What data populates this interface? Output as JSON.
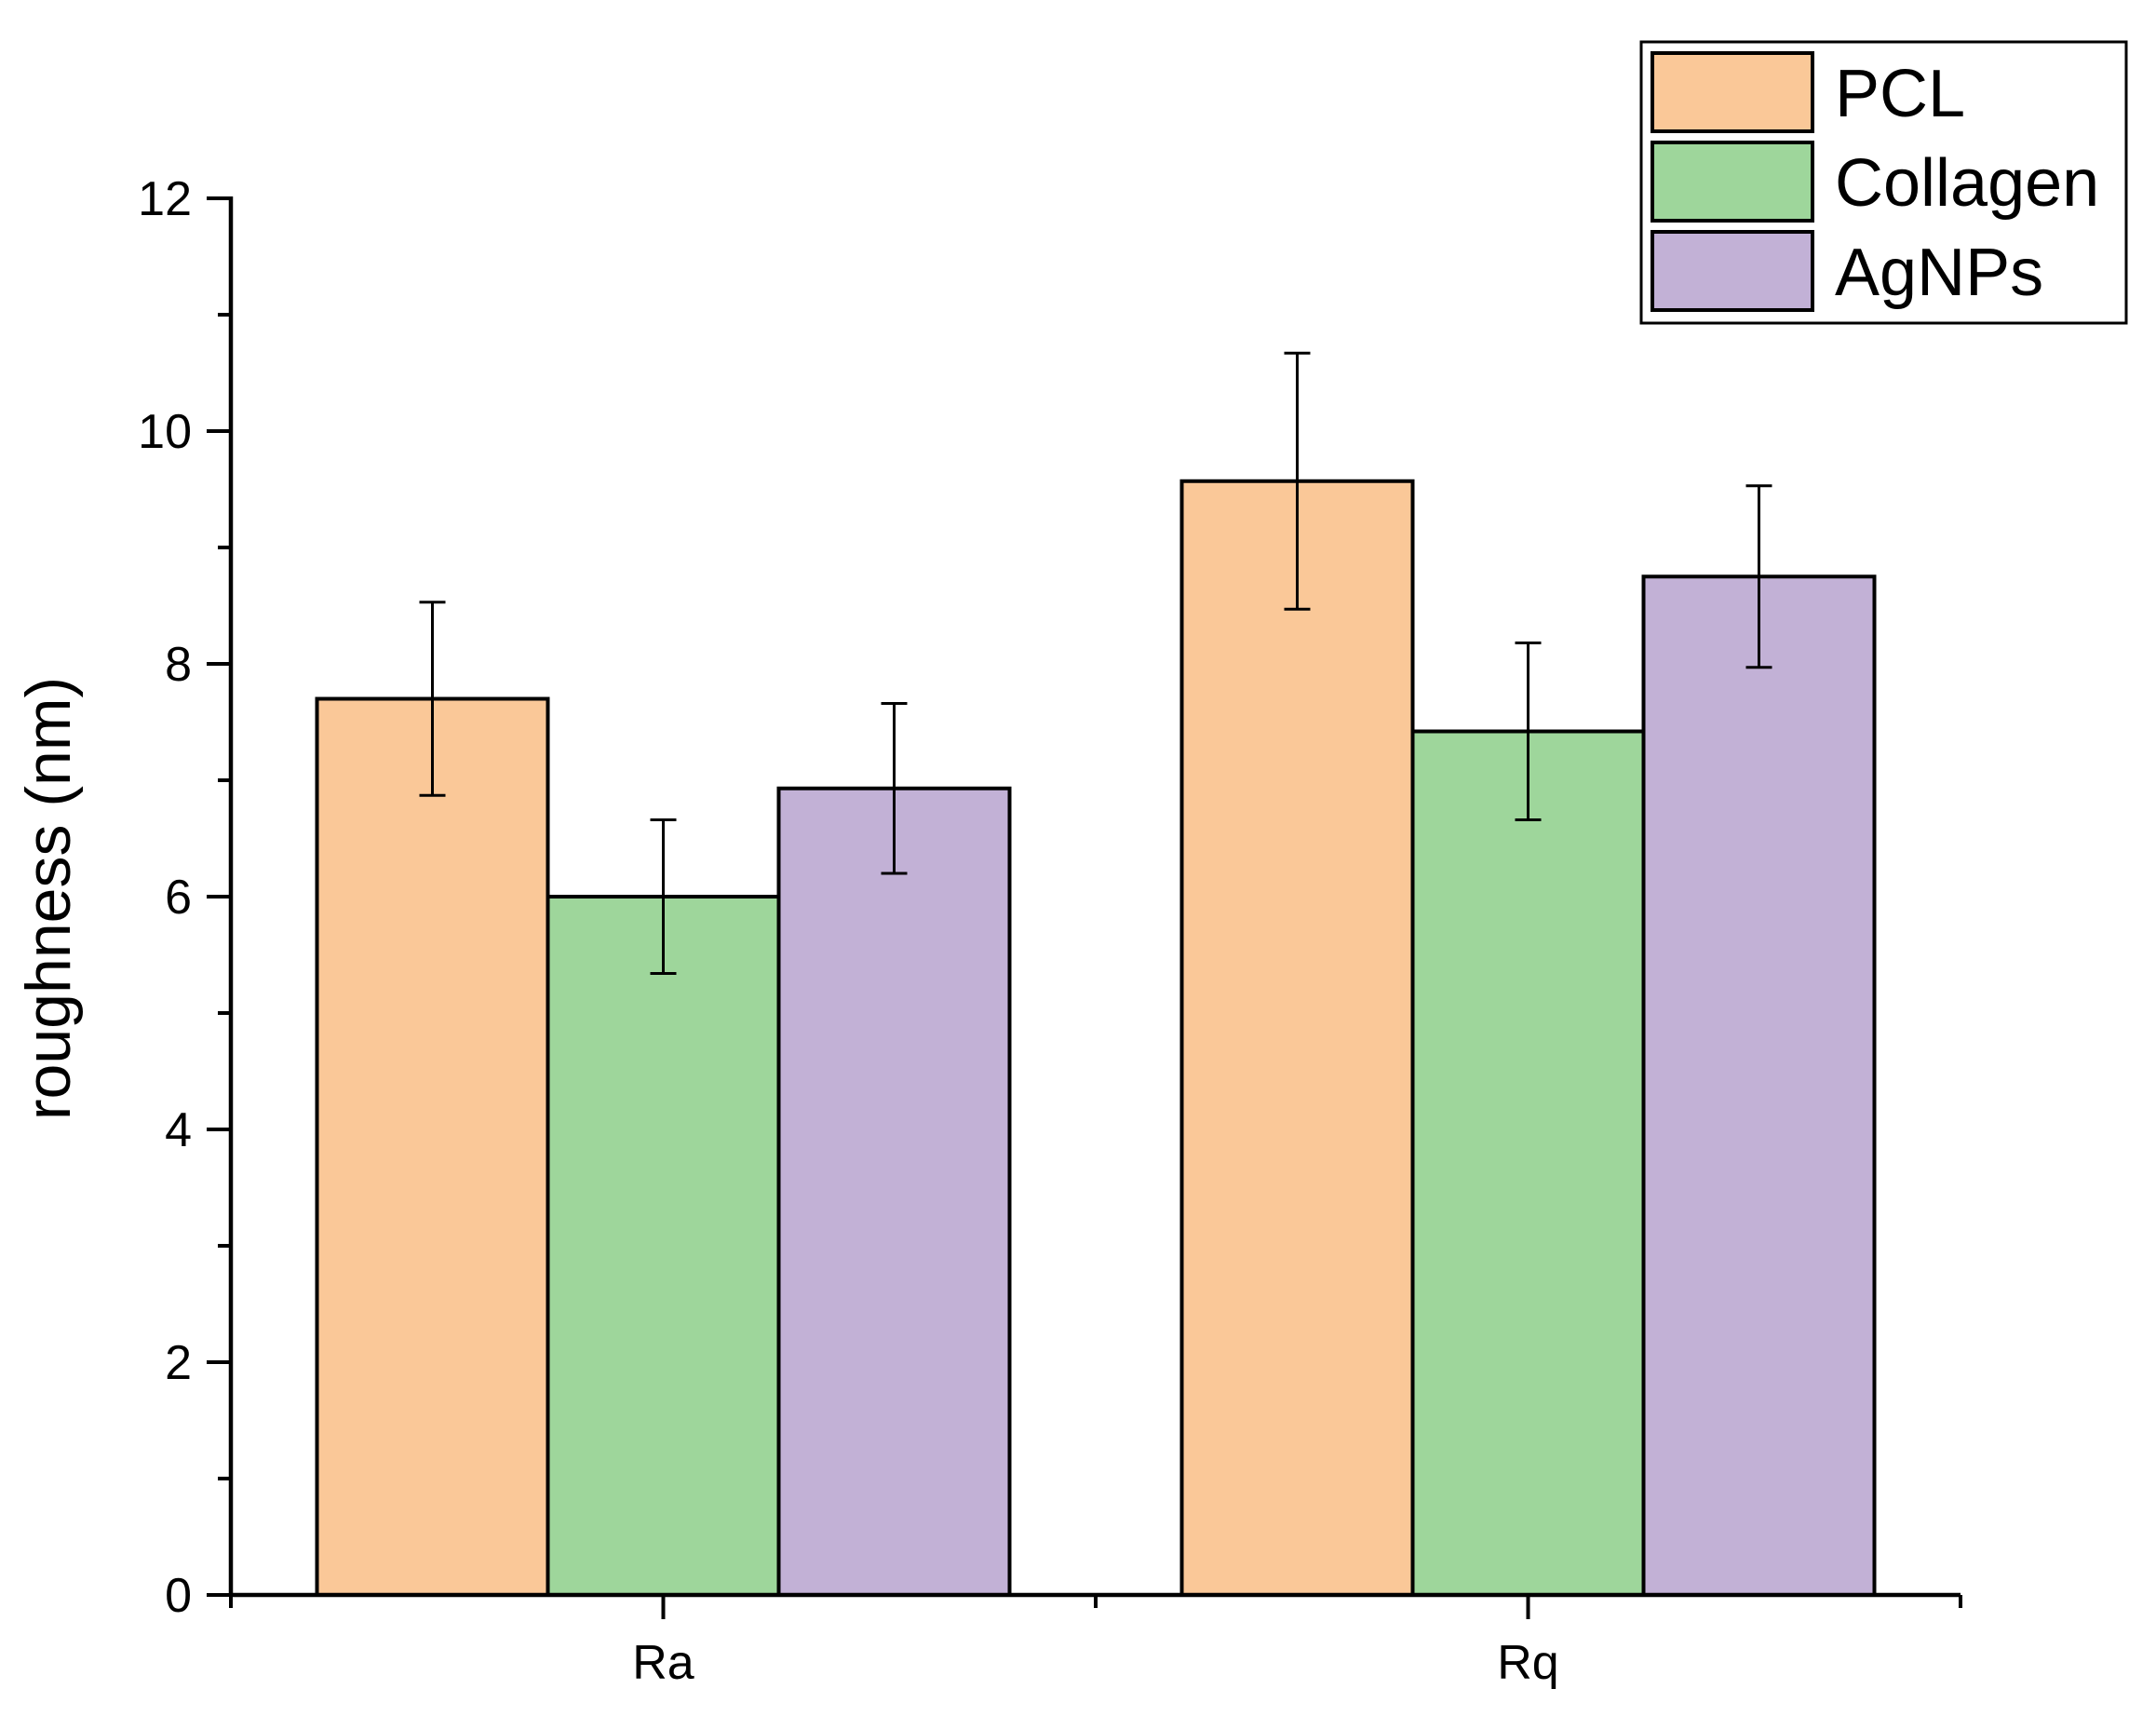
{
  "chart_data": {
    "type": "bar",
    "title": "",
    "xlabel": "",
    "ylabel": "roughness (nm)",
    "categories": [
      "Ra",
      "Rq"
    ],
    "series": [
      {
        "name": "PCL",
        "color": "#FAC898",
        "values": [
          7.7,
          9.57
        ],
        "errors": [
          0.83,
          1.1
        ]
      },
      {
        "name": "Collagen",
        "color": "#9ED69B",
        "values": [
          6.0,
          7.42
        ],
        "errors": [
          0.66,
          0.76
        ]
      },
      {
        "name": "AgNPs",
        "color": "#C2B1D6",
        "values": [
          6.93,
          8.75
        ],
        "errors": [
          0.73,
          0.78
        ]
      }
    ],
    "ylim": [
      0,
      12
    ],
    "yticks": [
      0,
      2,
      4,
      6,
      8,
      10,
      12
    ],
    "ytick_labels": [
      "0",
      "2",
      "4",
      "6",
      "8",
      "10",
      "12"
    ],
    "legend_position": "top-right",
    "grid": false
  }
}
